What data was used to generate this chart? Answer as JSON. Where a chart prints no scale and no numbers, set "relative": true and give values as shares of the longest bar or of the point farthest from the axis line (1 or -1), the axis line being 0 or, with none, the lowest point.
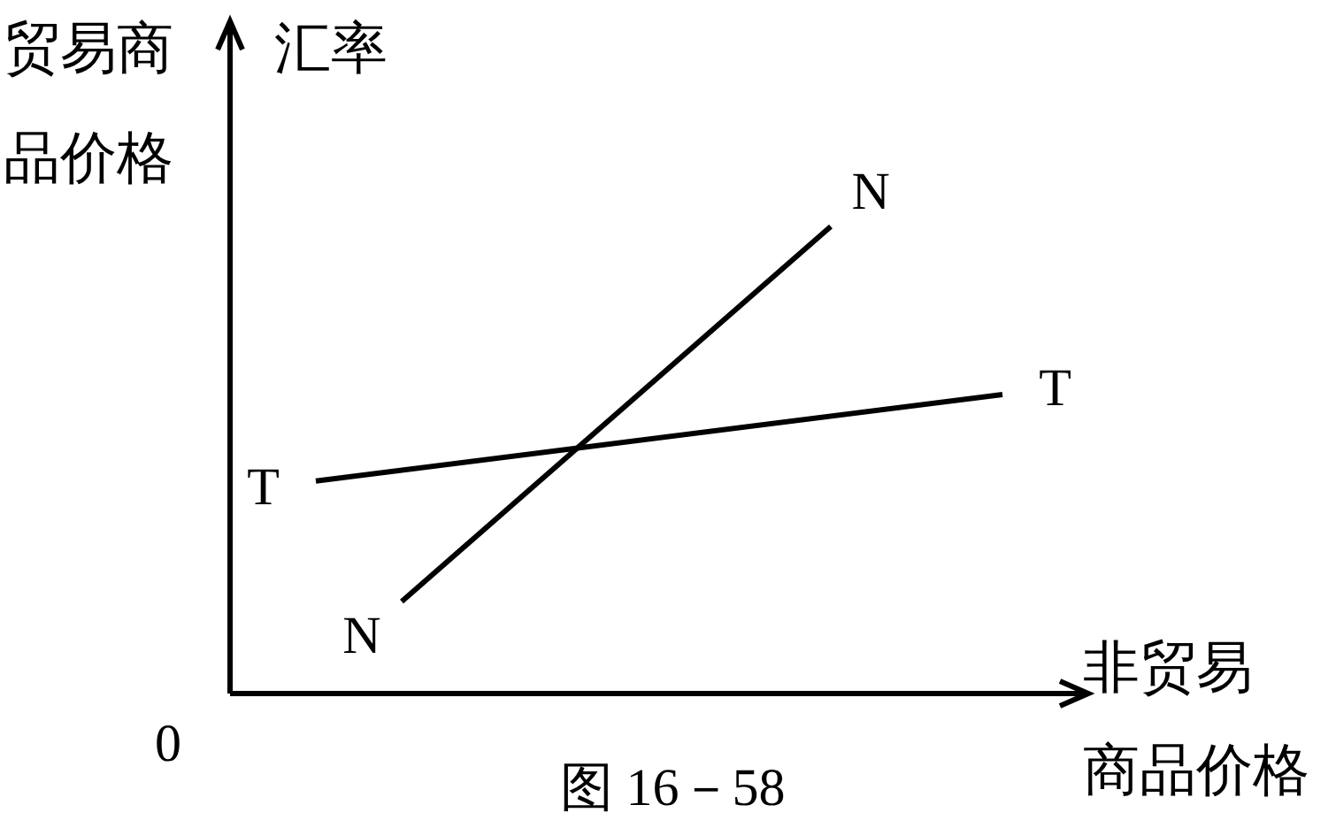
{
  "chart_data": {
    "type": "line",
    "relative": true,
    "title": "图 16－58",
    "ylabel": "贸易商品价格",
    "xlabel": "非贸易商品价格",
    "annotations": [
      "0",
      "汇率"
    ],
    "categories": [
      null,
      null,
      null,
      null,
      null,
      null,
      null,
      null,
      null,
      null
    ],
    "series": [
      {
        "name": "T",
        "color": "#000000",
        "values": [
          null,
          0.455,
          null,
          null,
          null,
          null,
          null,
          null,
          null,
          0.64
        ]
      },
      {
        "name": "N",
        "color": "#000000",
        "values": [
          null,
          null,
          0.197,
          null,
          null,
          null,
          null,
          1,
          null,
          null
        ]
      }
    ],
    "marker": "none",
    "grid": false,
    "legend": false
  }
}
